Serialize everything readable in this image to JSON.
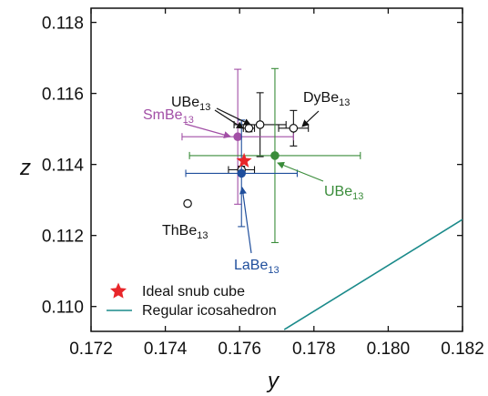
{
  "chart_data": {
    "type": "scatter",
    "xlabel": "y",
    "ylabel": "z",
    "xlim": [
      0.172,
      0.182
    ],
    "ylim": [
      0.1093,
      0.1184
    ],
    "x_ticks": [
      0.172,
      0.174,
      0.176,
      0.178,
      0.18,
      0.182
    ],
    "x_tick_labels": [
      "0.172",
      "0.174",
      "0.176",
      "0.178",
      "0.180",
      "0.182"
    ],
    "y_ticks": [
      0.11,
      0.112,
      0.114,
      0.116,
      0.118
    ],
    "y_tick_labels": [
      "0.110",
      "0.112",
      "0.114",
      "0.116",
      "0.118"
    ],
    "grid": false,
    "points": [
      {
        "x": 0.17655,
        "y": 0.11512,
        "xerr": 0.0007,
        "yerr": 0.0009,
        "color": "#111111",
        "filled": false,
        "label": "UBe13 (a)"
      },
      {
        "x": 0.17625,
        "y": 0.11502,
        "xerr": 0.00015,
        "yerr": 0.0001,
        "color": "#111111",
        "filled": false,
        "label": "UBe13 (b)"
      },
      {
        "x": 0.17745,
        "y": 0.11502,
        "xerr": 0.0004,
        "yerr": 0.0005,
        "color": "#111111",
        "filled": false,
        "label": "DyBe13"
      },
      {
        "x": 0.17595,
        "y": 0.11478,
        "xerr": 0.0015,
        "yerr": 0.0019,
        "color": "#a24fa6",
        "filled": true,
        "label": "SmBe13"
      },
      {
        "x": 0.17695,
        "y": 0.11425,
        "xerr": 0.0023,
        "yerr": 0.00245,
        "color": "#3a8c3a",
        "filled": true,
        "label": "UBe13 (green)"
      },
      {
        "x": 0.17605,
        "y": 0.11385,
        "xerr": 0.00035,
        "yerr": 0.0001,
        "color": "#111111",
        "filled": false,
        "label": "LaBe13 (open)"
      },
      {
        "x": 0.17605,
        "y": 0.11375,
        "xerr": 0.0015,
        "yerr": 0.0015,
        "color": "#1f4e9c",
        "filled": true,
        "label": "LaBe13"
      },
      {
        "x": 0.1746,
        "y": 0.1129,
        "xerr": 0,
        "yerr": 0,
        "color": "#111111",
        "filled": false,
        "label": "ThBe13"
      }
    ],
    "star": {
      "x": 0.17612,
      "y": 0.1141,
      "color": "#e8262a"
    },
    "line": {
      "x": [
        0.1772,
        0.182
      ],
      "y": [
        0.10935,
        0.11245
      ],
      "color": "#1a8a8a"
    },
    "annotations": [
      {
        "base": "UBe",
        "sub": "13",
        "color": "#111111"
      },
      {
        "base": "DyBe",
        "sub": "13",
        "color": "#111111"
      },
      {
        "base": "SmBe",
        "sub": "13",
        "color": "#a24fa6"
      },
      {
        "base": "UBe",
        "sub": "13",
        "color": "#3a8c3a"
      },
      {
        "base": "ThBe",
        "sub": "13",
        "color": "#111111"
      },
      {
        "base": "LaBe",
        "sub": "13",
        "color": "#1f4e9c"
      }
    ],
    "legend": {
      "placement": "bottom-left",
      "entries": [
        {
          "label": "Ideal snub cube",
          "marker": "star",
          "color": "#e8262a"
        },
        {
          "label": "Regular icosahedron",
          "marker": "line",
          "color": "#1a8a8a"
        }
      ]
    }
  }
}
